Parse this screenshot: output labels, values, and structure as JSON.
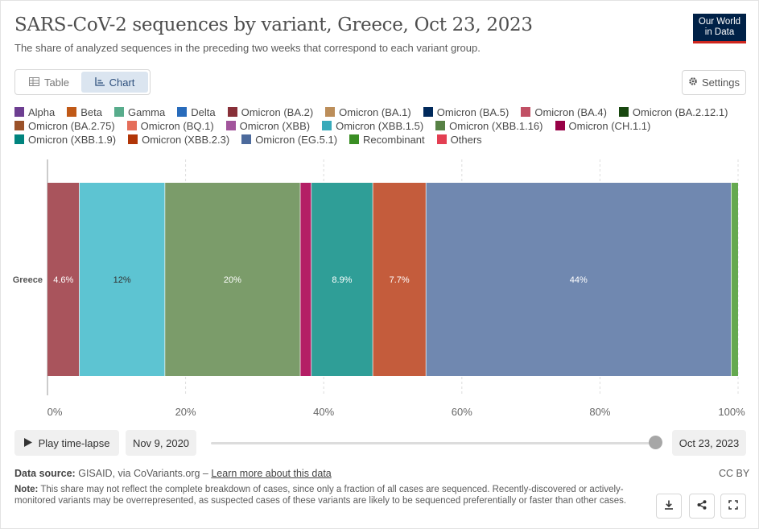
{
  "header": {
    "title": "SARS-CoV-2 sequences by variant, Greece, Oct 23, 2023",
    "subtitle": "The share of analyzed sequences in the preceding two weeks that correspond to each variant group.",
    "logo_line1": "Our World",
    "logo_line2": "in Data"
  },
  "tabs": [
    {
      "label": "Table",
      "icon": "table-icon",
      "active": false
    },
    {
      "label": "Chart",
      "icon": "chart-icon",
      "active": true
    }
  ],
  "settings_label": "Settings",
  "legend": [
    {
      "name": "Alpha",
      "color": "#6d3e91"
    },
    {
      "name": "Beta",
      "color": "#c05917"
    },
    {
      "name": "Gamma",
      "color": "#58ac8c"
    },
    {
      "name": "Delta",
      "color": "#286bbb"
    },
    {
      "name": "Omicron (BA.2)",
      "color": "#883039"
    },
    {
      "name": "Omicron (BA.1)",
      "color": "#bc8e5a"
    },
    {
      "name": "Omicron (BA.5)",
      "color": "#00295b"
    },
    {
      "name": "Omicron (BA.4)",
      "color": "#c15065"
    },
    {
      "name": "Omicron (BA.2.12.1)",
      "color": "#18470f"
    },
    {
      "name": "Omicron (BA.2.75)",
      "color": "#9a5129"
    },
    {
      "name": "Omicron (BQ.1)",
      "color": "#e56e5a"
    },
    {
      "name": "Omicron (XBB)",
      "color": "#a2559c"
    },
    {
      "name": "Omicron (XBB.1.5)",
      "color": "#38aaba"
    },
    {
      "name": "Omicron (XBB.1.16)",
      "color": "#578145"
    },
    {
      "name": "Omicron (CH.1.1)",
      "color": "#970046"
    },
    {
      "name": "Omicron (XBB.1.9)",
      "color": "#00847e"
    },
    {
      "name": "Omicron (XBB.2.3)",
      "color": "#b13507"
    },
    {
      "name": "Omicron (EG.5.1)",
      "color": "#4c6a9c"
    },
    {
      "name": "Recombinant",
      "color": "#3a8e24"
    },
    {
      "name": "Others",
      "color": "#e33f52"
    }
  ],
  "chart_data": {
    "type": "bar",
    "orientation": "horizontal",
    "stacked": true,
    "categories": [
      "Greece"
    ],
    "xlim": [
      0,
      100
    ],
    "x_ticks": [
      "0%",
      "20%",
      "40%",
      "60%",
      "80%",
      "100%"
    ],
    "series": [
      {
        "name": "Omicron (BA.4)",
        "values": [
          4.6
        ],
        "label": "4.6%",
        "color": "#a9545c"
      },
      {
        "name": "Omicron (XBB.1.5)",
        "values": [
          12.4
        ],
        "label": "12%",
        "color": "#5dc4d2"
      },
      {
        "name": "Omicron (XBB.1.16)",
        "values": [
          19.6
        ],
        "label": "20%",
        "color": "#7b9c6a"
      },
      {
        "name": "Omicron (CH.1.1)",
        "values": [
          1.6
        ],
        "label": "",
        "color": "#b41e65"
      },
      {
        "name": "Omicron (XBB.1.9)",
        "values": [
          8.9
        ],
        "label": "8.9%",
        "color": "#2f9e97"
      },
      {
        "name": "Omicron (XBB.2.3)",
        "values": [
          7.7
        ],
        "label": "7.7%",
        "color": "#c45c3c"
      },
      {
        "name": "Omicron (EG.5.1)",
        "values": [
          44.2
        ],
        "label": "44%",
        "color": "#7088b0"
      },
      {
        "name": "Recombinant",
        "values": [
          1.0
        ],
        "label": "",
        "color": "#65a94f"
      }
    ]
  },
  "controls": {
    "play_label": "Play time-lapse",
    "start_date": "Nov 9, 2020",
    "end_date": "Oct 23, 2023",
    "slider_position": 1.0
  },
  "footer": {
    "source_prefix": "Data source:",
    "source_text": "GISAID, via CoVariants.org –",
    "source_link": "Learn more about this data",
    "license": "CC BY",
    "note_prefix": "Note:",
    "note_text": "This share may not reflect the complete breakdown of cases, since only a fraction of all cases are sequenced. Recently-discovered or actively-monitored variants may be overrepresented, as suspected cases of these variants are likely to be sequenced preferentially or faster than other cases."
  }
}
